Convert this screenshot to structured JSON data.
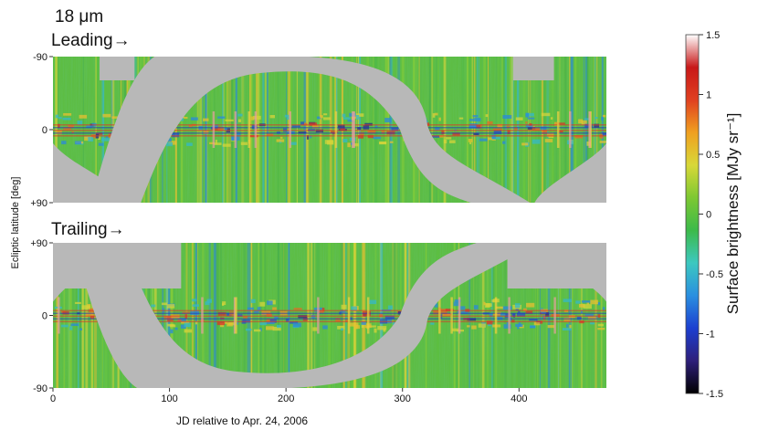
{
  "chart_data": {
    "type": "heatmap",
    "wavelength_label": "18 μm",
    "panels": [
      {
        "label": "Leading→",
        "y_ticks": [
          "-90",
          "0",
          "+90"
        ],
        "y_values": [
          -90,
          0,
          90
        ],
        "masked_band": {
          "description": "galactic-plane region (gray, no data)",
          "x_at_lat0": [
            95,
            170,
            290,
            335
          ],
          "top_blocks_x": [
            [
              40,
              70
            ],
            [
              395,
              430
            ]
          ]
        }
      },
      {
        "label": "Trailing→",
        "y_ticks": [
          "+90",
          "0",
          "-90"
        ],
        "y_values": [
          90,
          0,
          -90
        ],
        "masked_band": {
          "description": "galactic-plane region (gray, no data)",
          "x_at_lat0": [
            80,
            150,
            290,
            340
          ],
          "top_blocks_x": [
            [
              0,
              110
            ],
            [
              390,
              475
            ]
          ]
        }
      }
    ],
    "xlabel": "JD relative to Apr. 24, 2006",
    "x_ticks": [
      "0",
      "100",
      "200",
      "300",
      "400"
    ],
    "x_values": [
      0,
      100,
      200,
      300,
      400
    ],
    "xlim": [
      0,
      475
    ],
    "ylabel": "Ecliptic latitude [deg]",
    "colorbar": {
      "label": "Surface brightness [MJy sr⁻¹]",
      "min": -1.5,
      "max": 1.5,
      "ticks": [
        "1.5",
        "1",
        "0.5",
        "0",
        "-0.5",
        "-1",
        "-1.5"
      ],
      "tick_values": [
        1.5,
        1,
        0.5,
        0,
        -0.5,
        -1,
        -1.5
      ],
      "colors": [
        "#000000",
        "#2e1f7a",
        "#1c3fd0",
        "#2a8fe0",
        "#3cc8c0",
        "#3cba4a",
        "#7dc832",
        "#d8d838",
        "#f0a020",
        "#e04020",
        "#c81818",
        "#ffffff"
      ]
    },
    "mask_color": "#b8b8b8"
  }
}
